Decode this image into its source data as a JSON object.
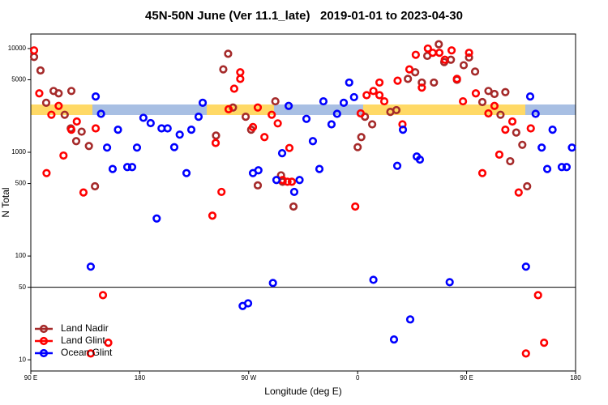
{
  "chart_data": {
    "type": "scatter",
    "title": "45N-50N June (Ver 11.1_late)   2019-01-01 to 2023-04-30",
    "xlabel": "Longitude (deg E)",
    "ylabel": "N Total",
    "xlim": [
      90,
      540
    ],
    "xticks": [
      {
        "value": 90,
        "label": "90 E"
      },
      180,
      {
        "value": 270,
        "label": "90 W"
      },
      {
        "value": 360,
        "label": "0"
      },
      {
        "value": 450,
        "label": "90 E"
      },
      {
        "value": 540,
        "label": "180"
      }
    ],
    "ylim": [
      7.8,
      13800
    ],
    "yticks": [
      10,
      50,
      100,
      500,
      1000,
      5000,
      10000
    ],
    "ylog": true,
    "reference_line": 50,
    "legend": "bottom-left",
    "series": [
      {
        "name": "Land Nadir",
        "color": "#a52a2a",
        "x": [
          92.7,
          98,
          102.7,
          108.8,
          113,
          118,
          123,
          123.5,
          127.5,
          132,
          138,
          143,
          243,
          249,
          253,
          257,
          267.5,
          272,
          277.5,
          292,
          296.7,
          298,
          307,
          360,
          363,
          366,
          372,
          387,
          392,
          401.5,
          407.5,
          413,
          417.5,
          423,
          427,
          431.5,
          437,
          442,
          447.6,
          452,
          457,
          463,
          468,
          473,
          478,
          482,
          486,
          491,
          496,
          500
        ],
        "values": [
          8300,
          6150,
          3000,
          3900,
          3700,
          2300,
          1700,
          3900,
          1280,
          1580,
          1150,
          470,
          1450,
          6300,
          8900,
          2700,
          2200,
          1650,
          480,
          3100,
          600,
          520,
          300,
          1120,
          1400,
          2200,
          1860,
          2450,
          2550,
          5100,
          5900,
          4700,
          8500,
          4700,
          11000,
          7400,
          7800,
          5000,
          6900,
          8200,
          6000,
          3050,
          3900,
          3650,
          2300,
          3800,
          820,
          1550,
          1180,
          470
        ]
      },
      {
        "name": "Land Glint",
        "color": "#ff0000",
        "x": [
          92.7,
          97,
          103,
          107,
          113,
          117,
          123.5,
          128,
          133.5,
          139.5,
          143.6,
          149.6,
          154,
          240,
          242.7,
          247.5,
          253.4,
          258,
          263,
          263,
          273.5,
          277.5,
          283,
          289,
          294,
          298,
          302,
          305.6,
          303.6,
          358,
          362.5,
          367.4,
          373,
          378,
          378,
          382,
          393,
          397,
          402.7,
          408,
          413,
          418,
          422,
          427.5,
          432,
          437.6,
          442,
          447,
          452,
          457.6,
          463,
          468,
          473,
          477,
          482,
          487.8,
          493,
          499,
          503,
          509,
          514
        ],
        "values": [
          9600,
          3700,
          630,
          2300,
          2800,
          930,
          1650,
          1980,
          410,
          11.5,
          1700,
          42,
          14.6,
          245,
          1230,
          415,
          2600,
          4100,
          5100,
          5900,
          1750,
          2700,
          1400,
          2300,
          1900,
          540,
          520,
          520,
          1100,
          300,
          2370,
          3550,
          3900,
          4700,
          3550,
          3100,
          4900,
          1860,
          6300,
          8700,
          4200,
          10000,
          9100,
          9100,
          7800,
          9600,
          5100,
          3100,
          9100,
          3700,
          630,
          2370,
          2800,
          950,
          1650,
          1980,
          410,
          11.5,
          1700,
          42,
          14.6
        ]
      },
      {
        "name": "Ocean Glint",
        "color": "#0000ff",
        "x": [
          139.5,
          143.6,
          148,
          153,
          157.6,
          162,
          169.7,
          173.7,
          177.7,
          183,
          189,
          194,
          198,
          203,
          208.5,
          213,
          218.6,
          222.6,
          228.6,
          232,
          265,
          269.5,
          273.5,
          278,
          290,
          292.9,
          297.6,
          303,
          307.6,
          312,
          317.7,
          323,
          328.4,
          331.7,
          338.4,
          343,
          348.5,
          353,
          357,
          373,
          390,
          392.7,
          397.4,
          403.4,
          408.8,
          411.4,
          436,
          499,
          502.5,
          507,
          512,
          516.6,
          521,
          528.6,
          532.6,
          537
        ],
        "values": [
          79,
          3450,
          2350,
          1110,
          690,
          1650,
          720,
          720,
          1110,
          2150,
          1910,
          230,
          1700,
          1700,
          1120,
          1480,
          630,
          1650,
          2200,
          3000,
          33,
          35,
          630,
          670,
          55,
          540,
          980,
          2800,
          415,
          540,
          2100,
          1280,
          690,
          3100,
          1860,
          2350,
          3000,
          4700,
          3400,
          59,
          15.7,
          740,
          1650,
          24.5,
          910,
          850,
          56,
          79,
          3450,
          2350,
          1110,
          690,
          1650,
          720,
          720,
          1110
        ]
      }
    ]
  }
}
